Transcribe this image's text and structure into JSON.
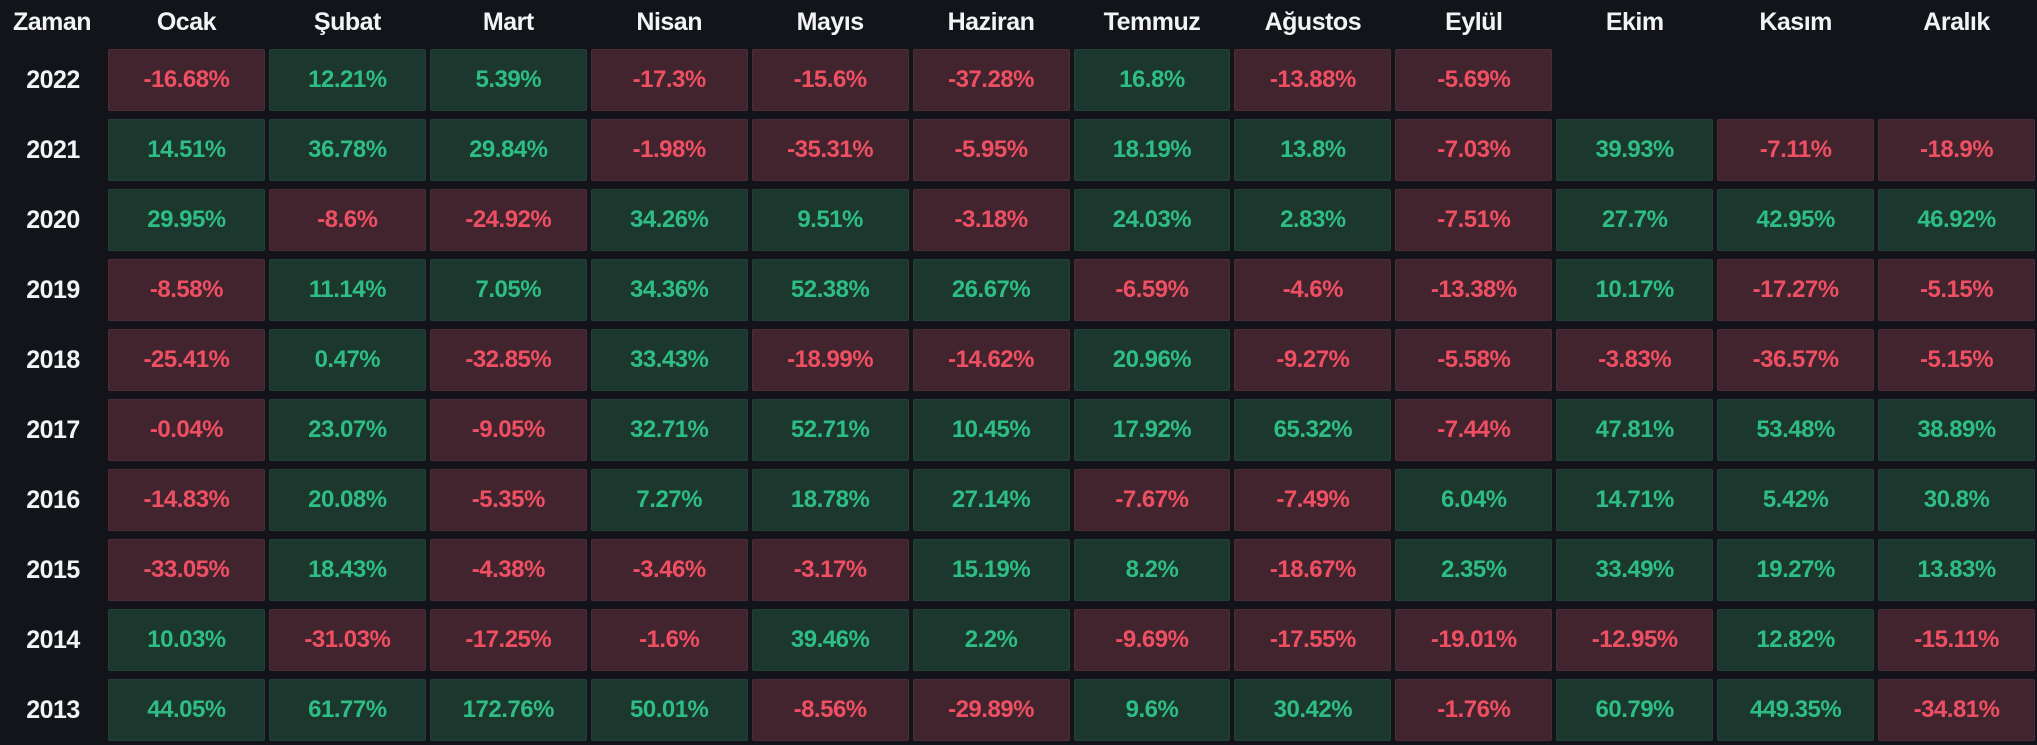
{
  "colors": {
    "page_bg": "#131419",
    "header_text": "#f2f3f5",
    "positive_text": "#2ebd85",
    "negative_text": "#ef4f62",
    "positive_bg": "#1b372e",
    "negative_bg": "#42242e"
  },
  "chart_data": {
    "type": "heatmap",
    "title": "",
    "corner_label": "Zaman",
    "values_unit": "%",
    "legend": "green = positive monthly return, red = negative monthly return",
    "columns": [
      "Ocak",
      "Şubat",
      "Mart",
      "Nisan",
      "Mayıs",
      "Haziran",
      "Temmuz",
      "Ağustos",
      "Eylül",
      "Ekim",
      "Kasım",
      "Aralık"
    ],
    "rows": [
      {
        "year": "2022",
        "values": [
          "-16.68%",
          "12.21%",
          "5.39%",
          "-17.3%",
          "-15.6%",
          "-37.28%",
          "16.8%",
          "-13.88%",
          "-5.69%",
          null,
          null,
          null
        ]
      },
      {
        "year": "2021",
        "values": [
          "14.51%",
          "36.78%",
          "29.84%",
          "-1.98%",
          "-35.31%",
          "-5.95%",
          "18.19%",
          "13.8%",
          "-7.03%",
          "39.93%",
          "-7.11%",
          "-18.9%"
        ]
      },
      {
        "year": "2020",
        "values": [
          "29.95%",
          "-8.6%",
          "-24.92%",
          "34.26%",
          "9.51%",
          "-3.18%",
          "24.03%",
          "2.83%",
          "-7.51%",
          "27.7%",
          "42.95%",
          "46.92%"
        ]
      },
      {
        "year": "2019",
        "values": [
          "-8.58%",
          "11.14%",
          "7.05%",
          "34.36%",
          "52.38%",
          "26.67%",
          "-6.59%",
          "-4.6%",
          "-13.38%",
          "10.17%",
          "-17.27%",
          "-5.15%"
        ]
      },
      {
        "year": "2018",
        "values": [
          "-25.41%",
          "0.47%",
          "-32.85%",
          "33.43%",
          "-18.99%",
          "-14.62%",
          "20.96%",
          "-9.27%",
          "-5.58%",
          "-3.83%",
          "-36.57%",
          "-5.15%"
        ]
      },
      {
        "year": "2017",
        "values": [
          "-0.04%",
          "23.07%",
          "-9.05%",
          "32.71%",
          "52.71%",
          "10.45%",
          "17.92%",
          "65.32%",
          "-7.44%",
          "47.81%",
          "53.48%",
          "38.89%"
        ]
      },
      {
        "year": "2016",
        "values": [
          "-14.83%",
          "20.08%",
          "-5.35%",
          "7.27%",
          "18.78%",
          "27.14%",
          "-7.67%",
          "-7.49%",
          "6.04%",
          "14.71%",
          "5.42%",
          "30.8%"
        ]
      },
      {
        "year": "2015",
        "values": [
          "-33.05%",
          "18.43%",
          "-4.38%",
          "-3.46%",
          "-3.17%",
          "15.19%",
          "8.2%",
          "-18.67%",
          "2.35%",
          "33.49%",
          "19.27%",
          "13.83%"
        ]
      },
      {
        "year": "2014",
        "values": [
          "10.03%",
          "-31.03%",
          "-17.25%",
          "-1.6%",
          "39.46%",
          "2.2%",
          "-9.69%",
          "-17.55%",
          "-19.01%",
          "-12.95%",
          "12.82%",
          "-15.11%"
        ]
      },
      {
        "year": "2013",
        "values": [
          "44.05%",
          "61.77%",
          "172.76%",
          "50.01%",
          "-8.56%",
          "-29.89%",
          "9.6%",
          "30.42%",
          "-1.76%",
          "60.79%",
          "449.35%",
          "-34.81%"
        ]
      }
    ]
  }
}
